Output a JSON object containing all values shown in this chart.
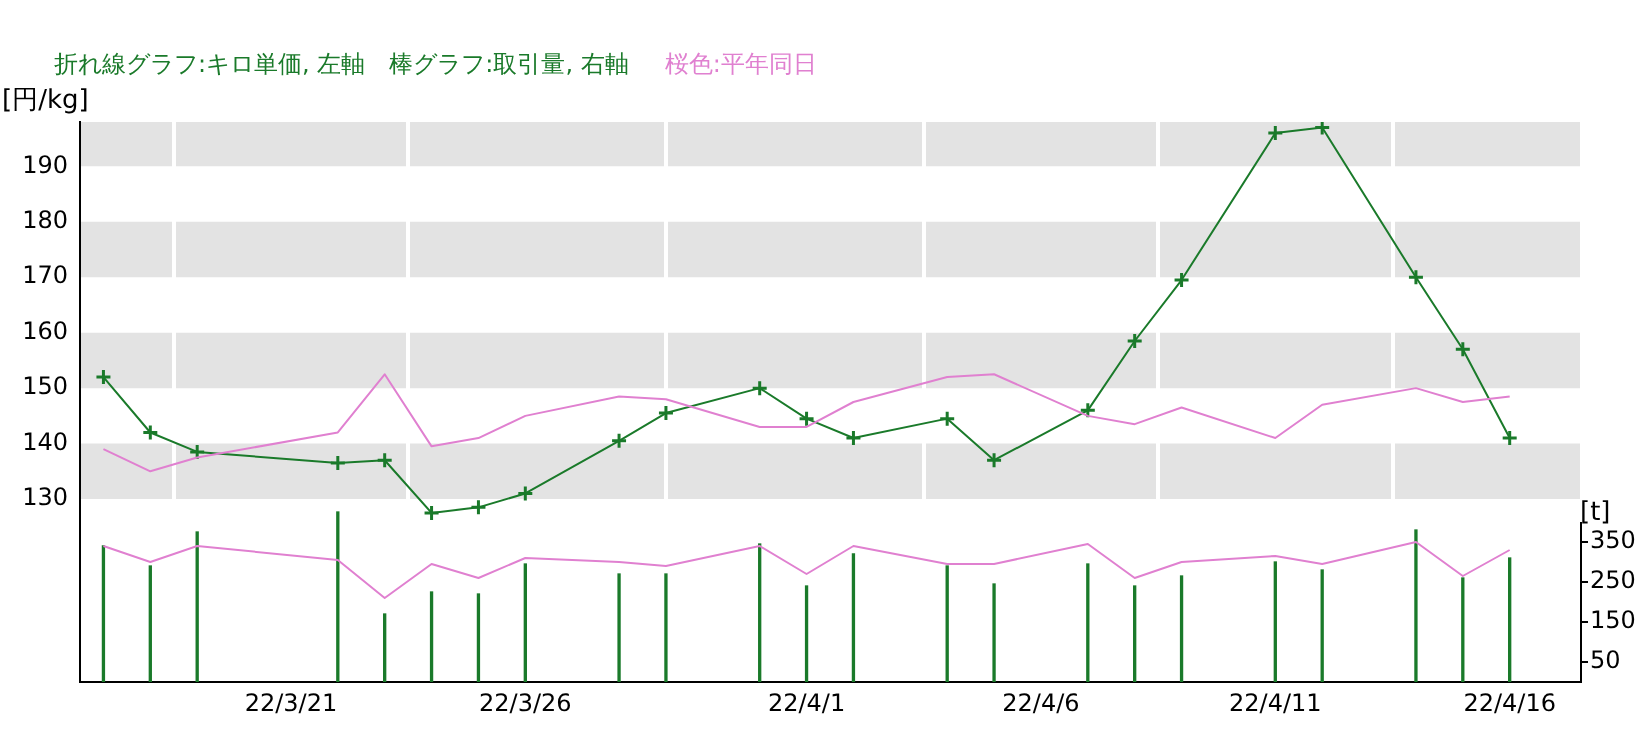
{
  "chart_data": {
    "type": "line",
    "title": "折れ線グラフ:キロ単価, 左軸　棒グラフ:取引量, 右軸",
    "subtitle": "桜色:平年同日",
    "ylabel": "[円/kg]",
    "y2label": "[t]",
    "x": [
      "--03-17",
      "--03-18",
      "--03-19",
      "--03-22",
      "--03-23",
      "--03-24",
      "--03-25",
      "--03-26",
      "--03-28",
      "--03-29",
      "--03-31",
      "--04-01",
      "--04-02",
      "--04-04",
      "--04-05",
      "--04-07",
      "--04-08",
      "--04-09",
      "--04-11",
      "--04-12",
      "--04-14",
      "--04-15",
      "--04-16"
    ],
    "series": [
      {
        "type": "bar",
        "axis": "y2",
        "color": "#1a7a2a",
        "values": [
          340,
          290,
          375,
          425,
          170,
          225,
          220,
          295,
          270,
          270,
          345,
          240,
          320,
          290,
          245,
          295,
          240,
          265,
          300,
          280,
          380,
          260,
          310
        ]
      },
      {
        "axis": "y2",
        "color": "#e080d0",
        "marker": "none",
        "values": [
          340,
          300,
          340,
          305,
          210,
          295,
          260,
          310,
          300,
          290,
          340,
          270,
          340,
          295,
          295,
          345,
          260,
          300,
          315,
          295,
          350,
          265,
          330
        ]
      },
      {
        "axis": "y",
        "color": "#e080d0",
        "marker": "none",
        "values": [
          139,
          135,
          137.5,
          142,
          152.5,
          139.5,
          141,
          145,
          148.5,
          148,
          143,
          143,
          147.5,
          152,
          152.5,
          145,
          143.5,
          146.5,
          141,
          147,
          150,
          147.5,
          148.5
        ]
      },
      {
        "axis": "y",
        "color": "#1a7a2a",
        "marker": "cross",
        "values": [
          152,
          142,
          138.5,
          136.5,
          137,
          127.5,
          128.5,
          131,
          140.5,
          145.5,
          150,
          144.5,
          141,
          144.5,
          137,
          146,
          158.5,
          169.5,
          196,
          197,
          170,
          157,
          141
        ]
      }
    ],
    "xlim": [
      "--03-16T12:00",
      "--04-17T12:00"
    ],
    "xticks": [
      {
        "value": "--03-21",
        "label": "22/3/21"
      },
      {
        "value": "--03-26",
        "label": "22/3/26"
      },
      {
        "value": "--04-01",
        "label": "22/4/1"
      },
      {
        "value": "--04-06",
        "label": "22/4/6"
      },
      {
        "value": "--04-11",
        "label": "22/4/11"
      },
      {
        "value": "--04-16",
        "label": "22/4/16"
      }
    ],
    "ylim": [
      97,
      198
    ],
    "yticks": [
      130,
      140,
      150,
      160,
      170,
      180,
      190
    ],
    "y2lim": [
      0,
      1400
    ],
    "y2ticks": [
      50,
      150,
      250,
      350
    ],
    "bands": [
      {
        "axis": "y",
        "from": 130,
        "to": 140,
        "color": "#e3e3e3"
      },
      {
        "axis": "y",
        "from": 150,
        "to": 160,
        "color": "#e3e3e3"
      },
      {
        "axis": "y",
        "from": 170,
        "to": 180,
        "color": "#e3e3e3"
      },
      {
        "axis": "y",
        "from": 190,
        "to": 198,
        "color": "#e3e3e3"
      }
    ],
    "grid": "x",
    "legend": false,
    "line_style": "solid"
  }
}
